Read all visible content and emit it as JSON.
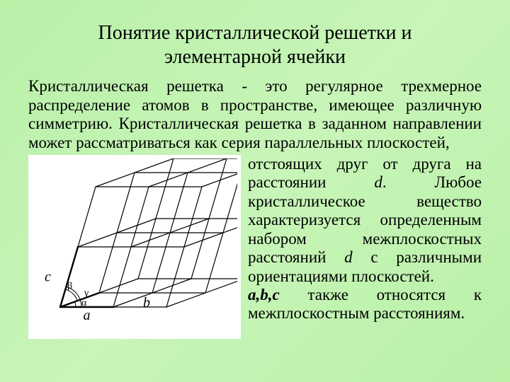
{
  "title_line1": "Понятие кристаллической решетки и",
  "title_line2": "элементарной ячейки",
  "intro": "Кристаллическая решетка - это регулярное трехмерное распределение атомов в пространстве, имеющее различную симметрию. Кристаллическая решетка в заданном направлении может рассматриваться как серия параллельных плоскостей,",
  "side_p1_a": "отстоящих друг от друга на расстоянии ",
  "side_p1_d": "d",
  "side_p1_b": ". Любое кристаллическое вещество характеризуется опреде­ленным набором межплос­костных расстояний ",
  "side_p1_d2": "d",
  "side_p1_c": " с различными ориентациями плоскостей.",
  "side_p2_abc": "a,b,c",
  "side_p2_rest": " также относятся к межплоскостным расстояниям.",
  "diagram": {
    "label_a": "a",
    "label_b": "b",
    "label_c": "c",
    "label_alpha": "α",
    "label_beta": "β",
    "label_gamma": "γ",
    "stroke": "#000000",
    "bg": "#ffffff",
    "thin": 1.2,
    "thick": 2.4
  }
}
